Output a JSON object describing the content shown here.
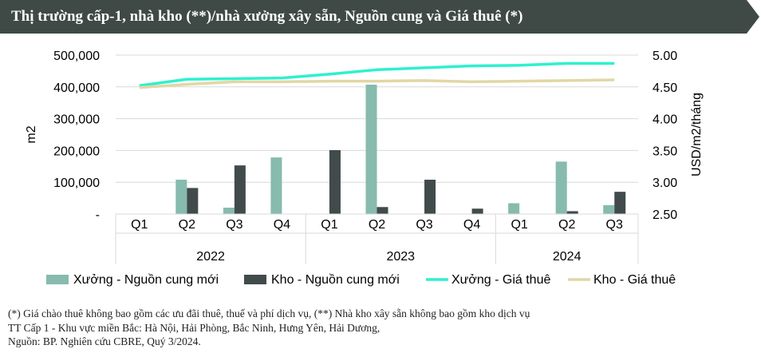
{
  "header": {
    "title": "Thị trường cấp-1, nhà kho (**)/nhà xưởng xây sẵn, Nguồn cung và Giá thuê (*)"
  },
  "colors": {
    "banner": "#3f4a47",
    "xuong_supply": "#86bbae",
    "kho_supply": "#414b4b",
    "xuong_rent": "#2ef0d0",
    "kho_rent": "#e1d7a6",
    "grid": "#d9d9d9"
  },
  "chart_data": {
    "type": "bar",
    "categories": [
      "Q1",
      "Q2",
      "Q3",
      "Q4",
      "Q1",
      "Q2",
      "Q3",
      "Q4",
      "Q1",
      "Q2",
      "Q3"
    ],
    "years": [
      {
        "label": "2022",
        "quarters": 4
      },
      {
        "label": "2023",
        "quarters": 4
      },
      {
        "label": "2024",
        "quarters": 3
      }
    ],
    "ylabel": "m2",
    "y2label": "USD/m2/tháng",
    "ylim": [
      0,
      500000
    ],
    "y2lim": [
      2.5,
      5.0
    ],
    "yticks": [
      "-",
      "100,000",
      "200,000",
      "300,000",
      "400,000",
      "500,000"
    ],
    "y2ticks": [
      "2.50",
      "3.00",
      "3.50",
      "4.00",
      "4.50",
      "5.00"
    ],
    "grid": true,
    "legend_position": "bottom",
    "series": [
      {
        "name": "Xưởng - Nguồn cung mới",
        "type": "bar",
        "axis": "left",
        "values": [
          0,
          108000,
          20000,
          178000,
          0,
          407000,
          0,
          0,
          34000,
          165000,
          28000
        ]
      },
      {
        "name": "Kho - Nguồn cung mới",
        "type": "bar",
        "axis": "left",
        "values": [
          0,
          82000,
          153000,
          0,
          201000,
          22000,
          108000,
          17000,
          0,
          9000,
          70000
        ]
      },
      {
        "name": "Xưởng - Giá thuê",
        "type": "line",
        "axis": "right",
        "values": [
          4.52,
          4.62,
          4.63,
          4.64,
          4.7,
          4.77,
          4.8,
          4.83,
          4.84,
          4.87,
          4.87
        ]
      },
      {
        "name": "Kho - Giá thuê",
        "type": "line",
        "axis": "right",
        "values": [
          4.49,
          4.54,
          4.58,
          4.58,
          4.59,
          4.59,
          4.6,
          4.58,
          4.59,
          4.6,
          4.61
        ]
      }
    ]
  },
  "notes": [
    "(*) Giá chào thuê không bao gồm các ưu đãi thuê, thuế và phí dịch vụ, (**) Nhà kho xây sẵn không bao gồm kho dịch vụ",
    "TT Cấp 1 - Khu vực miền Bắc: Hà Nội, Hải Phòng, Bắc Ninh, Hưng Yên, Hải Dương,",
    "Nguồn: BP. Nghiên cứu CBRE, Quý 3/2024."
  ]
}
